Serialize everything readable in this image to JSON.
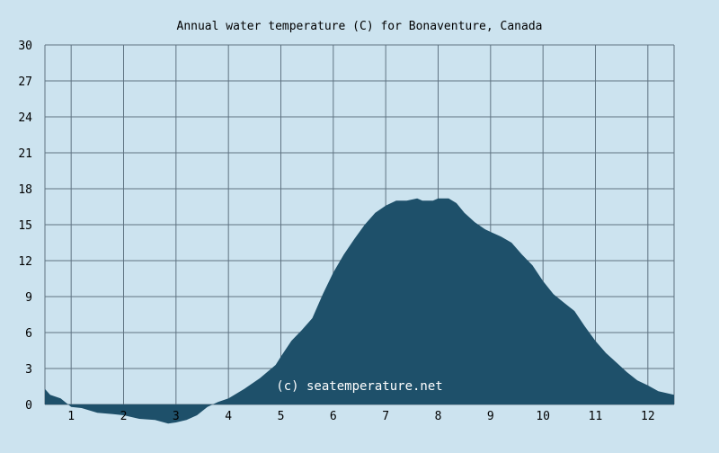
{
  "chart_data": {
    "type": "area",
    "title": "Annual water temperature (C) for Bonaventure, Canada",
    "xlabel": "",
    "ylabel": "",
    "ylim": [
      0,
      30
    ],
    "xlim": [
      0.5,
      12.5
    ],
    "y_ticks": [
      0,
      3,
      6,
      9,
      12,
      15,
      18,
      21,
      24,
      27,
      30
    ],
    "x_ticks": [
      1,
      2,
      3,
      4,
      5,
      6,
      7,
      8,
      9,
      10,
      11,
      12
    ],
    "grid": true,
    "watermark": "(c) seatemperature.net",
    "colors": {
      "background": "#cce3ef",
      "area": "#1e506a",
      "grid": "#5f7382",
      "watermark": "#ffffff"
    },
    "series": [
      {
        "x": [
          0.5,
          0.6,
          0.8,
          1.0,
          1.2,
          1.5,
          1.8,
          2.0,
          2.3,
          2.6,
          2.85,
          3.0,
          3.2,
          3.4,
          3.6,
          3.8,
          4.0,
          4.3,
          4.6,
          4.9,
          5.0,
          5.2,
          5.4,
          5.6,
          5.8,
          6.0,
          6.2,
          6.4,
          6.6,
          6.8,
          7.0,
          7.2,
          7.4,
          7.6,
          7.7,
          7.9,
          8.0,
          8.2,
          8.35,
          8.5,
          8.7,
          8.9,
          9.0,
          9.2,
          9.4,
          9.6,
          9.8,
          10.0,
          10.2,
          10.4,
          10.6,
          10.8,
          11.0,
          11.2,
          11.4,
          11.6,
          11.8,
          12.0,
          12.2,
          12.5
        ],
        "values": [
          1.3,
          0.8,
          0.5,
          -0.2,
          -0.3,
          -0.7,
          -0.8,
          -0.9,
          -1.2,
          -1.3,
          -1.6,
          -1.5,
          -1.3,
          -0.9,
          -0.2,
          0.2,
          0.5,
          1.3,
          2.2,
          3.3,
          4.0,
          5.3,
          6.2,
          7.2,
          9.2,
          11.0,
          12.5,
          13.8,
          15.0,
          16.0,
          16.6,
          17.0,
          17.0,
          17.2,
          17.0,
          17.0,
          17.2,
          17.2,
          16.8,
          16.0,
          15.2,
          14.6,
          14.4,
          14.0,
          13.5,
          12.5,
          11.6,
          10.3,
          9.2,
          8.5,
          7.8,
          6.5,
          5.3,
          4.3,
          3.5,
          2.7,
          2.0,
          1.6,
          1.1,
          0.8
        ]
      }
    ]
  }
}
